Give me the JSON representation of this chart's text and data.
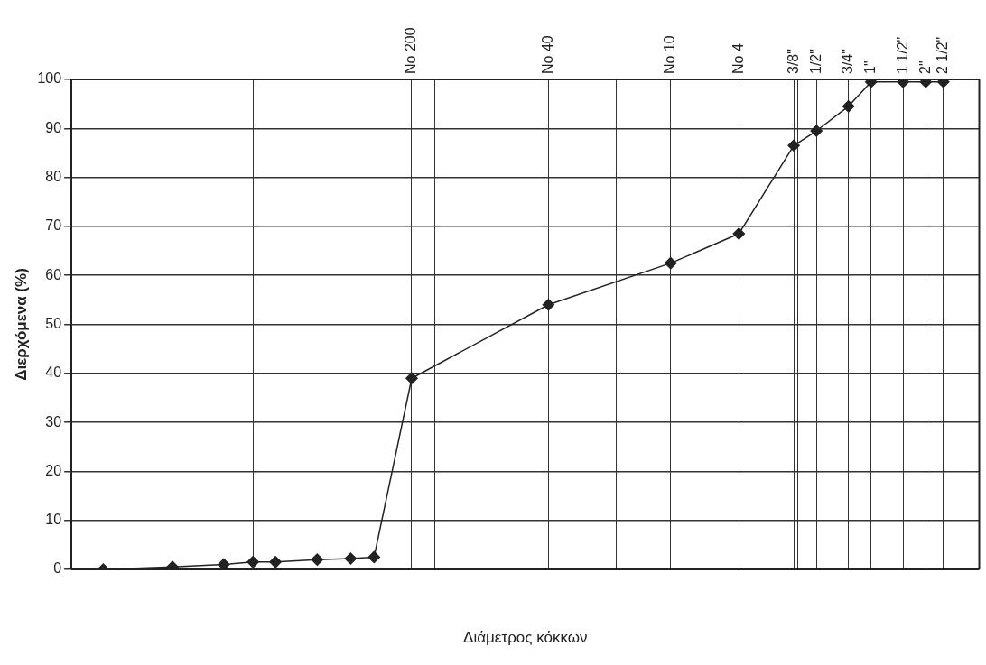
{
  "chart_data": {
    "type": "line",
    "xlabel": "Διάμετρος κόκκων",
    "ylabel": "Διερχόμενα (%)",
    "x": [
      5.9e-05,
      0.000142,
      0.000272,
      0.000394,
      0.000524,
      0.00089,
      0.00136,
      0.00183,
      0.00295,
      0.0167,
      0.0787,
      0.187,
      0.375,
      0.5,
      0.75,
      1,
      1.5,
      2,
      2.5
    ],
    "series": [
      {
        "color": "#222222",
        "values": [
          0,
          0.5,
          1,
          1.5,
          1.5,
          2,
          2.2,
          2.5,
          39,
          54,
          62.5,
          68.5,
          86.5,
          89.5,
          94.5,
          99.5,
          99.5,
          99.5,
          99.5
        ]
      }
    ],
    "xlim": [
      3.94e-05,
      3.94
    ],
    "xticks": [
      {
        "value": 3.94e-05,
        "label": null
      },
      {
        "value": 0.000394,
        "label": null
      },
      {
        "value": 0.00295,
        "label": "No 200"
      },
      {
        "value": 0.00394,
        "label": null
      },
      {
        "value": 0.0167,
        "label": "No 40"
      },
      {
        "value": 0.0394,
        "label": null
      },
      {
        "value": 0.0787,
        "label": "No 10"
      },
      {
        "value": 0.187,
        "label": "No 4"
      },
      {
        "value": 0.375,
        "label": "3/8\""
      },
      {
        "value": 0.394,
        "label": null
      },
      {
        "value": 0.5,
        "label": "1/2\""
      },
      {
        "value": 0.75,
        "label": "3/4\""
      },
      {
        "value": 1,
        "label": "1\""
      },
      {
        "value": 1.5,
        "label": "1 1/2\""
      },
      {
        "value": 2,
        "label": "2\""
      },
      {
        "value": 2.5,
        "label": "2 1/2\""
      },
      {
        "value": 3.94,
        "label": null
      }
    ],
    "ylim": [
      0,
      100
    ],
    "yticks": [
      0,
      10,
      20,
      30,
      40,
      50,
      60,
      70,
      80,
      90,
      100
    ],
    "log": "x",
    "grid": true,
    "marker": "diamond"
  }
}
